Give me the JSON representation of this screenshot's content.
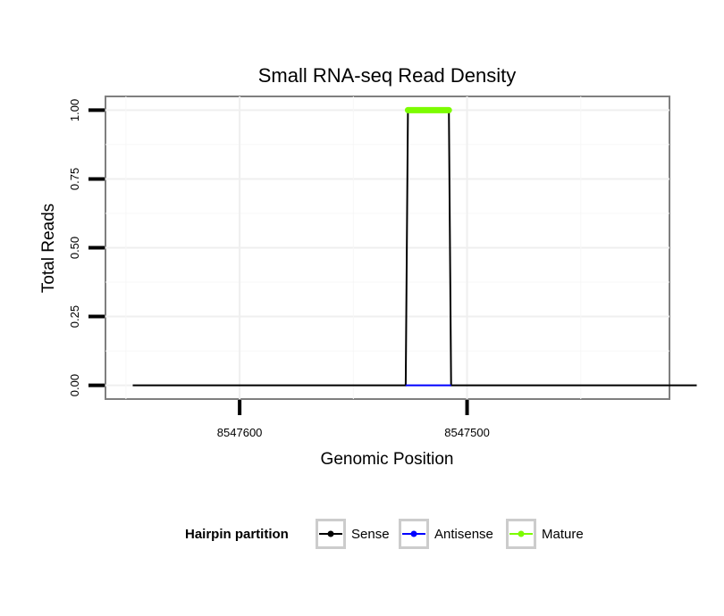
{
  "chart_data": {
    "type": "line",
    "title": "Small RNA-seq Read Density",
    "xlabel": "Genomic Position",
    "ylabel": "Total Reads",
    "x_reversed": true,
    "xlim": [
      8547659,
      8547411
    ],
    "ylim": [
      -0.05,
      1.05
    ],
    "x_ticks": [
      8547600,
      8547500
    ],
    "x_tick_labels": [
      "8547600",
      "8547500"
    ],
    "y_ticks": [
      0,
      0.25,
      0.5,
      0.75,
      1.0
    ],
    "y_tick_labels": [
      "0.00",
      "0.25",
      "0.50",
      "0.75",
      "1.00"
    ],
    "grid": true,
    "legend_position": "bottom",
    "legend_title": "Hairpin partition",
    "series": [
      {
        "name": "Sense",
        "color": "#000000",
        "x": [
          8547647,
          8547527,
          8547526,
          8547508,
          8547507,
          8547399
        ],
        "y": [
          0,
          0,
          1,
          1,
          0,
          0
        ]
      },
      {
        "name": "Antisense",
        "color": "#0000ff",
        "x": [
          8547527,
          8547507
        ],
        "y": [
          0,
          0
        ]
      },
      {
        "name": "Mature",
        "color": "#7cfc00",
        "x": [
          8547526,
          8547508
        ],
        "y": [
          1,
          1
        ]
      }
    ]
  }
}
